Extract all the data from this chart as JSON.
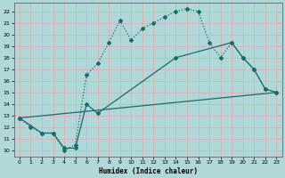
{
  "xlabel": "Humidex (Indice chaleur)",
  "ylabel": "",
  "background_color": "#b0d8d8",
  "grid_color": "#c8e8e8",
  "line_color": "#1a6b6b",
  "xlim": [
    -0.5,
    23.5
  ],
  "ylim": [
    9.5,
    22.7
  ],
  "yticks": [
    10,
    11,
    12,
    13,
    14,
    15,
    16,
    17,
    18,
    19,
    20,
    21,
    22
  ],
  "xticks": [
    0,
    1,
    2,
    3,
    4,
    5,
    6,
    7,
    8,
    9,
    10,
    11,
    12,
    13,
    14,
    15,
    16,
    17,
    18,
    19,
    20,
    21,
    22,
    23
  ],
  "line1_x": [
    0,
    1,
    2,
    3,
    4,
    5,
    6,
    7,
    8,
    9,
    10,
    11,
    12,
    13,
    14,
    15,
    16,
    17,
    18,
    19,
    20,
    21,
    22,
    23
  ],
  "line1_y": [
    12.8,
    12.0,
    11.5,
    11.5,
    10.0,
    10.5,
    16.5,
    17.5,
    19.3,
    21.2,
    19.5,
    20.5,
    21.0,
    21.5,
    22.0,
    22.2,
    22.0,
    19.3,
    18.0,
    19.3,
    18.0,
    17.0,
    15.3,
    15.0
  ],
  "line2_x": [
    0,
    2,
    3,
    4,
    5,
    6,
    7,
    14,
    19,
    20,
    21,
    22,
    23
  ],
  "line2_y": [
    12.8,
    11.5,
    11.5,
    10.2,
    10.2,
    14.0,
    13.2,
    18.0,
    19.3,
    18.0,
    17.0,
    15.3,
    15.0
  ],
  "line3_x": [
    0,
    23
  ],
  "line3_y": [
    12.8,
    15.0
  ]
}
